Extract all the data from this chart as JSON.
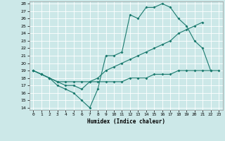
{
  "title": "",
  "xlabel": "Humidex (Indice chaleur)",
  "background_color": "#cce8e8",
  "grid_color": "#ffffff",
  "line_color": "#1a7a6e",
  "xlim": [
    -0.5,
    23.5
  ],
  "ylim": [
    13.7,
    28.3
  ],
  "xticks": [
    0,
    1,
    2,
    3,
    4,
    5,
    6,
    7,
    8,
    9,
    10,
    11,
    12,
    13,
    14,
    15,
    16,
    17,
    18,
    19,
    20,
    21,
    22,
    23
  ],
  "yticks": [
    14,
    15,
    16,
    17,
    18,
    19,
    20,
    21,
    22,
    23,
    24,
    25,
    26,
    27,
    28
  ],
  "line1_x": [
    0,
    1,
    2,
    3,
    4,
    5,
    6,
    7,
    8,
    9,
    10,
    11,
    12,
    13,
    14,
    15,
    16,
    17,
    18,
    19,
    20,
    21,
    22
  ],
  "line1_y": [
    19.0,
    18.5,
    18.0,
    17.0,
    16.5,
    16.0,
    15.0,
    14.0,
    16.5,
    21.0,
    21.0,
    21.5,
    26.5,
    26.0,
    27.5,
    27.5,
    28.0,
    27.5,
    26.0,
    25.0,
    23.0,
    22.0,
    19.0
  ],
  "line2_x": [
    0,
    1,
    2,
    3,
    4,
    5,
    6,
    7,
    8,
    9,
    10,
    11,
    12,
    13,
    14,
    15,
    16,
    17,
    18,
    19,
    20,
    21
  ],
  "line2_y": [
    19.0,
    18.5,
    18.0,
    17.5,
    17.5,
    17.5,
    17.5,
    17.5,
    18.0,
    19.0,
    19.5,
    20.0,
    20.5,
    21.0,
    21.5,
    22.0,
    22.5,
    23.0,
    24.0,
    24.5,
    25.0,
    25.5
  ],
  "line3_x": [
    0,
    1,
    2,
    3,
    4,
    5,
    6,
    7,
    8,
    9,
    10,
    11,
    12,
    13,
    14,
    15,
    16,
    17,
    18,
    19,
    20,
    21,
    22,
    23
  ],
  "line3_y": [
    19.0,
    18.5,
    18.0,
    17.5,
    17.0,
    17.0,
    16.5,
    17.5,
    17.5,
    17.5,
    17.5,
    17.5,
    18.0,
    18.0,
    18.0,
    18.5,
    18.5,
    18.5,
    19.0,
    19.0,
    19.0,
    19.0,
    19.0,
    19.0
  ]
}
